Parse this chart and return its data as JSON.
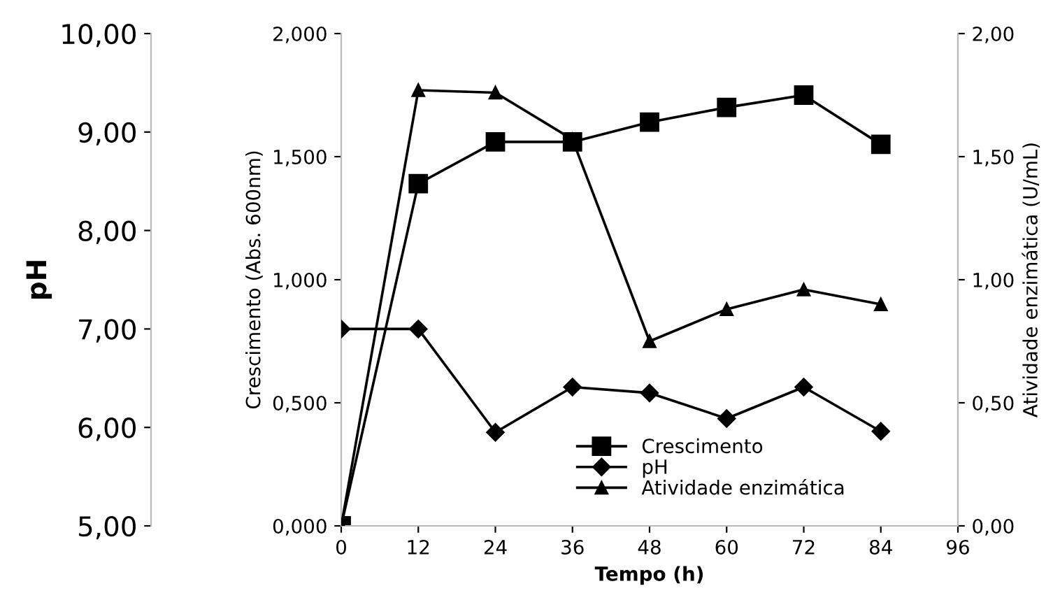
{
  "chart_data": {
    "type": "line",
    "xlabel": "Tempo (h)",
    "ylabel": "Crescimento (Abs. 600nm)",
    "y2label": "Atividade enzimática (U/mL)",
    "y3label": "pH",
    "x": [
      0,
      12,
      24,
      36,
      48,
      60,
      72,
      84
    ],
    "series": [
      {
        "name": "Crescimento",
        "color": "#000000",
        "marker": "square",
        "values": [
          0,
          1.39,
          1.56,
          1.56,
          1.64,
          1.7,
          1.75,
          1.55
        ]
      },
      {
        "name": "pH",
        "color": "#000000",
        "marker": "diamond",
        "axis": "y3",
        "values": [
          7.0,
          7.0,
          5.95,
          6.41,
          6.35,
          6.09,
          6.41,
          5.96
        ]
      },
      {
        "name": "Atividade enzimática",
        "color": "#000000",
        "marker": "triangle",
        "axis": "y2",
        "values": [
          0,
          1.77,
          1.76,
          1.57,
          0.75,
          0.88,
          0.96,
          0.9
        ]
      }
    ],
    "xlim": [
      0,
      96
    ],
    "xticks": [
      0,
      12,
      24,
      36,
      48,
      60,
      72,
      84,
      96
    ],
    "ylim": [
      0,
      2
    ],
    "yticks": [
      {
        "value": 0,
        "label": "0,000"
      },
      {
        "value": 0.5,
        "label": "0,500"
      },
      {
        "value": 1,
        "label": "1,000"
      },
      {
        "value": 1.5,
        "label": "1,500"
      },
      {
        "value": 2,
        "label": "2,000"
      }
    ],
    "y2lim": [
      0,
      2
    ],
    "y2ticks": [
      {
        "value": 0,
        "label": "0,00"
      },
      {
        "value": 0.5,
        "label": "0,50"
      },
      {
        "value": 1,
        "label": "1,00"
      },
      {
        "value": 1.5,
        "label": "1,50"
      },
      {
        "value": 2,
        "label": "2,00"
      }
    ],
    "y3lim": [
      5,
      10
    ],
    "y3ticks": [
      {
        "value": 5,
        "label": "5,00"
      },
      {
        "value": 6,
        "label": "6,00"
      },
      {
        "value": 7,
        "label": "7,00"
      },
      {
        "value": 8,
        "label": "8,00"
      },
      {
        "value": 9,
        "label": "9,00"
      },
      {
        "value": 10,
        "label": "10,00"
      }
    ],
    "legend": "bottom",
    "line_style": "solid",
    "grid": false
  }
}
